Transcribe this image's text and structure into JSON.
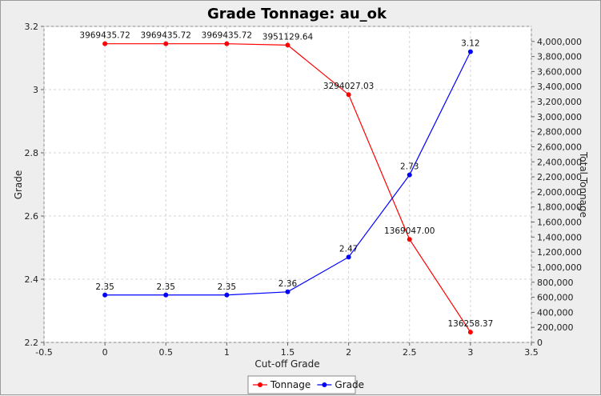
{
  "chart_data": {
    "type": "line",
    "title": "Grade Tonnage: au_ok",
    "xlabel": "Cut-off Grade",
    "ylabel_left": "Grade",
    "ylabel_right": "Total Tonnage",
    "xlim": [
      -0.5,
      3.5
    ],
    "ylim_left": [
      2.2,
      3.2
    ],
    "ylim_right": [
      0,
      4200000
    ],
    "x_ticks": [
      "-0.5",
      "0",
      "0.5",
      "1",
      "1.5",
      "2",
      "2.5",
      "3",
      "3.5"
    ],
    "y_left_ticks": [
      "2.2",
      "2.4",
      "2.6",
      "2.8",
      "3",
      "3.2"
    ],
    "y_right_ticks": [
      "0",
      "200,000",
      "400,000",
      "600,000",
      "800,000",
      "1,000,000",
      "1,200,000",
      "1,400,000",
      "1,600,000",
      "1,800,000",
      "2,000,000",
      "2,200,000",
      "2,400,000",
      "2,600,000",
      "2,800,000",
      "3,000,000",
      "3,200,000",
      "3,400,000",
      "3,600,000",
      "3,800,000",
      "4,000,000"
    ],
    "grid": true,
    "legend_position": "bottom-center",
    "x": [
      0,
      0.5,
      1,
      1.5,
      2,
      2.5,
      3
    ],
    "series": [
      {
        "name": "Tonnage",
        "axis": "right",
        "color": "#ff0000",
        "values": [
          3969435.72,
          3969435.72,
          3969435.72,
          3951129.64,
          3294027.03,
          1369047.0,
          136258.37
        ],
        "labels": [
          "3969435.72",
          "3969435.72",
          "3969435.72",
          "3951129.64",
          "3294027.03",
          "1369047.00",
          "136258.37"
        ]
      },
      {
        "name": "Grade",
        "axis": "left",
        "color": "#0000ff",
        "values": [
          2.35,
          2.35,
          2.35,
          2.36,
          2.47,
          2.73,
          3.12
        ],
        "labels": [
          "2.35",
          "2.35",
          "2.35",
          "2.36",
          "2.47",
          "2.73",
          "3.12"
        ]
      }
    ]
  }
}
